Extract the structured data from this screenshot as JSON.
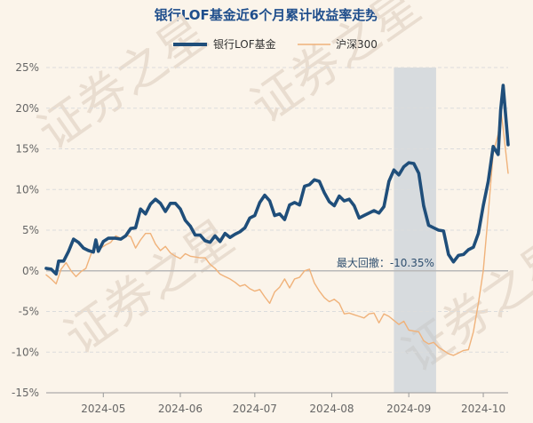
{
  "chart_data": {
    "type": "line",
    "title": "银行LOF基金近6个月累计收益率走势",
    "watermark": "证券之星",
    "y_ticks": [
      "25%",
      "20%",
      "15%",
      "10%",
      "5%",
      "0%",
      "-5%",
      "-10%",
      "-15%"
    ],
    "x_ticks": [
      "2024-05",
      "2024-06",
      "2024-07",
      "2024-08",
      "2024-09",
      "2024-10"
    ],
    "ylim": [
      -15,
      25
    ],
    "y_unit": "%",
    "grid": "horizontal",
    "legend_position": "top-center",
    "annotation": {
      "label": "最大回撤：-10.35%",
      "drawdown_value": -10.35,
      "x_start": "2024-08-26",
      "x_end": "2024-09-12"
    },
    "series": [
      {
        "name": "银行LOF基金",
        "color": "#1f4e7a",
        "points": [
          [
            "2024-04-08",
            0.3
          ],
          [
            "2024-04-10",
            0.2
          ],
          [
            "2024-04-12",
            -0.4
          ],
          [
            "2024-04-13",
            1.2
          ],
          [
            "2024-04-15",
            1.2
          ],
          [
            "2024-04-17",
            2.4
          ],
          [
            "2024-04-19",
            3.9
          ],
          [
            "2024-04-21",
            3.5
          ],
          [
            "2024-04-23",
            2.8
          ],
          [
            "2024-04-25",
            2.5
          ],
          [
            "2024-04-27",
            2.3
          ],
          [
            "2024-04-28",
            3.8
          ],
          [
            "2024-04-29",
            2.4
          ],
          [
            "2024-05-01",
            3.6
          ],
          [
            "2024-05-03",
            4.0
          ],
          [
            "2024-05-06",
            4.0
          ],
          [
            "2024-05-08",
            3.9
          ],
          [
            "2024-05-10",
            4.3
          ],
          [
            "2024-05-12",
            5.2
          ],
          [
            "2024-05-14",
            5.3
          ],
          [
            "2024-05-16",
            7.6
          ],
          [
            "2024-05-18",
            7.0
          ],
          [
            "2024-05-20",
            8.2
          ],
          [
            "2024-05-22",
            8.8
          ],
          [
            "2024-05-24",
            8.3
          ],
          [
            "2024-05-26",
            7.3
          ],
          [
            "2024-05-28",
            8.3
          ],
          [
            "2024-05-30",
            8.3
          ],
          [
            "2024-06-01",
            7.6
          ],
          [
            "2024-06-03",
            6.2
          ],
          [
            "2024-06-05",
            5.5
          ],
          [
            "2024-06-07",
            4.4
          ],
          [
            "2024-06-09",
            4.4
          ],
          [
            "2024-06-11",
            3.7
          ],
          [
            "2024-06-13",
            3.5
          ],
          [
            "2024-06-15",
            4.3
          ],
          [
            "2024-06-17",
            3.6
          ],
          [
            "2024-06-19",
            4.6
          ],
          [
            "2024-06-21",
            4.1
          ],
          [
            "2024-06-23",
            4.5
          ],
          [
            "2024-06-25",
            4.8
          ],
          [
            "2024-06-27",
            5.3
          ],
          [
            "2024-06-29",
            6.5
          ],
          [
            "2024-07-01",
            6.8
          ],
          [
            "2024-07-03",
            8.4
          ],
          [
            "2024-07-05",
            9.3
          ],
          [
            "2024-07-07",
            8.6
          ],
          [
            "2024-07-09",
            6.8
          ],
          [
            "2024-07-11",
            7.0
          ],
          [
            "2024-07-13",
            6.3
          ],
          [
            "2024-07-15",
            8.1
          ],
          [
            "2024-07-17",
            8.4
          ],
          [
            "2024-07-19",
            8.1
          ],
          [
            "2024-07-21",
            10.4
          ],
          [
            "2024-07-23",
            10.6
          ],
          [
            "2024-07-25",
            11.2
          ],
          [
            "2024-07-27",
            11.0
          ],
          [
            "2024-07-29",
            9.6
          ],
          [
            "2024-07-31",
            8.5
          ],
          [
            "2024-08-02",
            8.0
          ],
          [
            "2024-08-04",
            9.2
          ],
          [
            "2024-08-06",
            8.6
          ],
          [
            "2024-08-08",
            8.8
          ],
          [
            "2024-08-10",
            8.0
          ],
          [
            "2024-08-12",
            6.5
          ],
          [
            "2024-08-14",
            6.8
          ],
          [
            "2024-08-16",
            7.1
          ],
          [
            "2024-08-18",
            7.4
          ],
          [
            "2024-08-20",
            7.1
          ],
          [
            "2024-08-22",
            7.9
          ],
          [
            "2024-08-24",
            11.0
          ],
          [
            "2024-08-26",
            12.4
          ],
          [
            "2024-08-28",
            11.8
          ],
          [
            "2024-08-30",
            12.8
          ],
          [
            "2024-09-01",
            13.3
          ],
          [
            "2024-09-03",
            13.2
          ],
          [
            "2024-09-05",
            12.0
          ],
          [
            "2024-09-07",
            8.0
          ],
          [
            "2024-09-09",
            5.6
          ],
          [
            "2024-09-11",
            5.3
          ],
          [
            "2024-09-13",
            5.0
          ],
          [
            "2024-09-15",
            4.9
          ],
          [
            "2024-09-17",
            2.0
          ],
          [
            "2024-09-19",
            1.1
          ],
          [
            "2024-09-21",
            1.9
          ],
          [
            "2024-09-23",
            2.0
          ],
          [
            "2024-09-25",
            2.6
          ],
          [
            "2024-09-27",
            2.9
          ],
          [
            "2024-09-29",
            4.6
          ],
          [
            "2024-10-01",
            8.0
          ],
          [
            "2024-10-03",
            11.0
          ],
          [
            "2024-10-05",
            15.3
          ],
          [
            "2024-10-07",
            14.3
          ],
          [
            "2024-10-08",
            19.8
          ],
          [
            "2024-10-09",
            22.8
          ],
          [
            "2024-10-11",
            15.5
          ]
        ]
      },
      {
        "name": "沪深300",
        "color": "#f0b27a",
        "points": [
          [
            "2024-04-08",
            -0.5
          ],
          [
            "2024-04-10",
            -1.0
          ],
          [
            "2024-04-12",
            -1.6
          ],
          [
            "2024-04-14",
            0.2
          ],
          [
            "2024-04-16",
            1.0
          ],
          [
            "2024-04-18",
            0.0
          ],
          [
            "2024-04-20",
            -0.7
          ],
          [
            "2024-04-22",
            -0.1
          ],
          [
            "2024-04-24",
            0.3
          ],
          [
            "2024-04-26",
            2.0
          ],
          [
            "2024-04-28",
            3.3
          ],
          [
            "2024-04-30",
            2.8
          ],
          [
            "2024-05-02",
            3.2
          ],
          [
            "2024-05-04",
            3.5
          ],
          [
            "2024-05-06",
            4.3
          ],
          [
            "2024-05-08",
            4.0
          ],
          [
            "2024-05-10",
            4.4
          ],
          [
            "2024-05-12",
            4.2
          ],
          [
            "2024-05-14",
            2.8
          ],
          [
            "2024-05-16",
            3.8
          ],
          [
            "2024-05-18",
            4.6
          ],
          [
            "2024-05-20",
            4.6
          ],
          [
            "2024-05-22",
            3.3
          ],
          [
            "2024-05-24",
            2.5
          ],
          [
            "2024-05-26",
            3.0
          ],
          [
            "2024-05-28",
            2.2
          ],
          [
            "2024-05-30",
            1.8
          ],
          [
            "2024-06-01",
            1.5
          ],
          [
            "2024-06-03",
            2.1
          ],
          [
            "2024-06-05",
            1.8
          ],
          [
            "2024-06-07",
            1.7
          ],
          [
            "2024-06-09",
            1.6
          ],
          [
            "2024-06-11",
            1.6
          ],
          [
            "2024-06-13",
            0.8
          ],
          [
            "2024-06-15",
            0.3
          ],
          [
            "2024-06-17",
            -0.4
          ],
          [
            "2024-06-19",
            -0.7
          ],
          [
            "2024-06-21",
            -1.0
          ],
          [
            "2024-06-23",
            -1.4
          ],
          [
            "2024-06-25",
            -1.9
          ],
          [
            "2024-06-27",
            -1.7
          ],
          [
            "2024-06-29",
            -2.2
          ],
          [
            "2024-07-01",
            -2.5
          ],
          [
            "2024-07-03",
            -2.3
          ],
          [
            "2024-07-05",
            -3.2
          ],
          [
            "2024-07-07",
            -4.0
          ],
          [
            "2024-07-09",
            -2.6
          ],
          [
            "2024-07-11",
            -2.0
          ],
          [
            "2024-07-13",
            -1.0
          ],
          [
            "2024-07-15",
            -2.1
          ],
          [
            "2024-07-17",
            -1.0
          ],
          [
            "2024-07-19",
            -0.8
          ],
          [
            "2024-07-21",
            0.0
          ],
          [
            "2024-07-23",
            0.2
          ],
          [
            "2024-07-25",
            -1.5
          ],
          [
            "2024-07-27",
            -2.5
          ],
          [
            "2024-07-29",
            -3.3
          ],
          [
            "2024-07-31",
            -3.8
          ],
          [
            "2024-08-02",
            -3.5
          ],
          [
            "2024-08-04",
            -4.0
          ],
          [
            "2024-08-06",
            -5.3
          ],
          [
            "2024-08-08",
            -5.2
          ],
          [
            "2024-08-10",
            -5.4
          ],
          [
            "2024-08-12",
            -5.6
          ],
          [
            "2024-08-14",
            -5.8
          ],
          [
            "2024-08-16",
            -5.3
          ],
          [
            "2024-08-18",
            -5.2
          ],
          [
            "2024-08-20",
            -6.4
          ],
          [
            "2024-08-22",
            -5.3
          ],
          [
            "2024-08-24",
            -5.6
          ],
          [
            "2024-08-26",
            -6.1
          ],
          [
            "2024-08-28",
            -6.6
          ],
          [
            "2024-08-30",
            -6.2
          ],
          [
            "2024-09-01",
            -7.3
          ],
          [
            "2024-09-03",
            -7.4
          ],
          [
            "2024-09-05",
            -7.5
          ],
          [
            "2024-09-07",
            -8.6
          ],
          [
            "2024-09-09",
            -9.0
          ],
          [
            "2024-09-11",
            -8.8
          ],
          [
            "2024-09-13",
            -9.4
          ],
          [
            "2024-09-15",
            -9.8
          ],
          [
            "2024-09-17",
            -10.2
          ],
          [
            "2024-09-19",
            -10.4
          ],
          [
            "2024-09-21",
            -10.1
          ],
          [
            "2024-09-23",
            -9.8
          ],
          [
            "2024-09-25",
            -9.7
          ],
          [
            "2024-09-27",
            -7.5
          ],
          [
            "2024-09-29",
            -4.0
          ],
          [
            "2024-10-01",
            0.0
          ],
          [
            "2024-10-03",
            7.0
          ],
          [
            "2024-10-05",
            14.5
          ],
          [
            "2024-10-07",
            16.8
          ],
          [
            "2024-10-08",
            20.0
          ],
          [
            "2024-10-09",
            17.5
          ],
          [
            "2024-10-11",
            12.0
          ]
        ]
      }
    ]
  }
}
